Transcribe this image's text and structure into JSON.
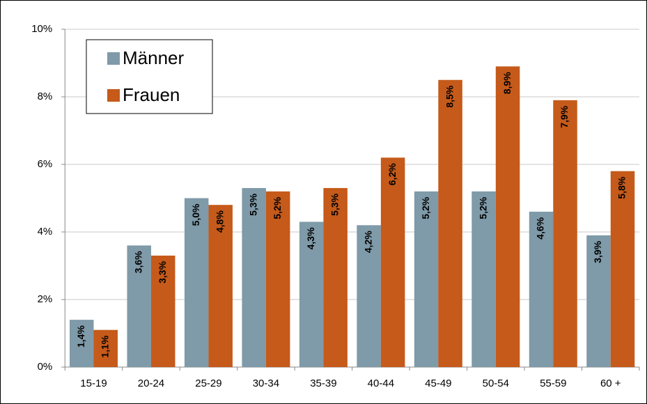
{
  "chart_data": {
    "type": "bar",
    "categories": [
      "15-19",
      "20-24",
      "25-29",
      "30-34",
      "35-39",
      "40-44",
      "45-49",
      "50-54",
      "55-59",
      "60 +"
    ],
    "series": [
      {
        "name": "Männer",
        "color": "#7f9aa8",
        "values": [
          1.4,
          3.6,
          5.0,
          5.3,
          4.3,
          4.2,
          5.2,
          5.2,
          4.6,
          3.9
        ],
        "value_labels": [
          "1,4%",
          "3,6%",
          "5,0%",
          "5,3%",
          "4,3%",
          "4,2%",
          "5,2%",
          "5,2%",
          "4,6%",
          "3,9%"
        ]
      },
      {
        "name": "Frauen",
        "color": "#c55a1a",
        "values": [
          1.1,
          3.3,
          4.8,
          5.2,
          5.3,
          6.2,
          8.5,
          8.9,
          7.9,
          5.8
        ],
        "value_labels": [
          "1,1%",
          "3,3%",
          "4,8%",
          "5,2%",
          "5,3%",
          "6,2%",
          "8,5%",
          "8,9%",
          "7,9%",
          "5,8%"
        ]
      }
    ],
    "ylim": [
      0,
      10
    ],
    "yticks": [
      {
        "value": 0,
        "label": "0%"
      },
      {
        "value": 2,
        "label": "2%"
      },
      {
        "value": 4,
        "label": "4%"
      },
      {
        "value": 6,
        "label": "6%"
      },
      {
        "value": 8,
        "label": "8%"
      },
      {
        "value": 10,
        "label": "10%"
      }
    ],
    "grid": true,
    "legend": "upper left"
  }
}
